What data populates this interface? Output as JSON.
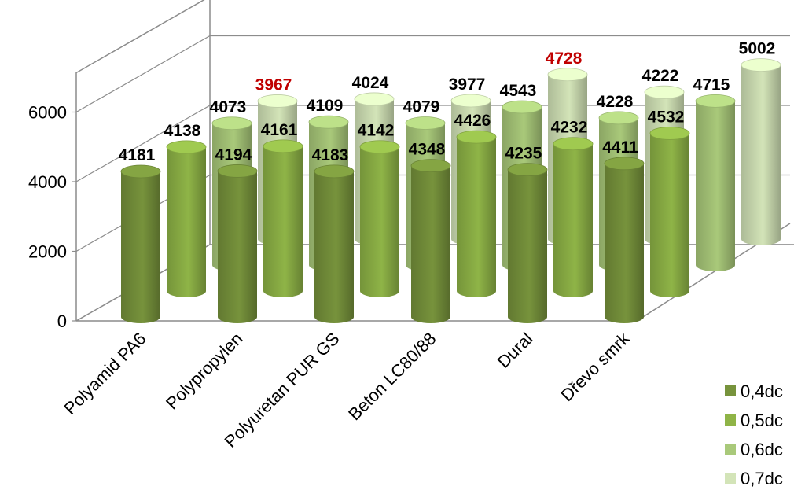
{
  "chart_data": {
    "type": "bar",
    "style": "3d-cylinder",
    "title": "",
    "xlabel": "",
    "ylabel": "",
    "ylim": [
      0,
      6000
    ],
    "yticks": [
      0,
      2000,
      4000,
      6000
    ],
    "grid": true,
    "legend_position": "bottom-right",
    "categories": [
      "Polyamid PA6",
      "Polypropylen",
      "Polyuretan PUR GS",
      "Beton LC80/88",
      "Dural",
      "Dřevo smrk"
    ],
    "series": [
      {
        "name": "0,4dc",
        "color": "#77933c",
        "values": [
          4181,
          4194,
          4183,
          4348,
          4235,
          4411
        ]
      },
      {
        "name": "0,5dc",
        "color": "#8fb447",
        "values": [
          4138,
          4161,
          4142,
          4426,
          4232,
          4532
        ]
      },
      {
        "name": "0,6dc",
        "color": "#a9c97a",
        "values": [
          4073,
          4109,
          4079,
          4543,
          4228,
          4715
        ]
      },
      {
        "name": "0,7dc",
        "color": "#d3e4b8",
        "values": [
          3967,
          4024,
          3977,
          4728,
          4222,
          5002
        ]
      }
    ],
    "label_colors": {
      "default": "#000000",
      "highlight": "#c00000"
    },
    "highlighted_labels": [
      {
        "series": 3,
        "category": 0
      },
      {
        "series": 3,
        "category": 3
      }
    ]
  }
}
